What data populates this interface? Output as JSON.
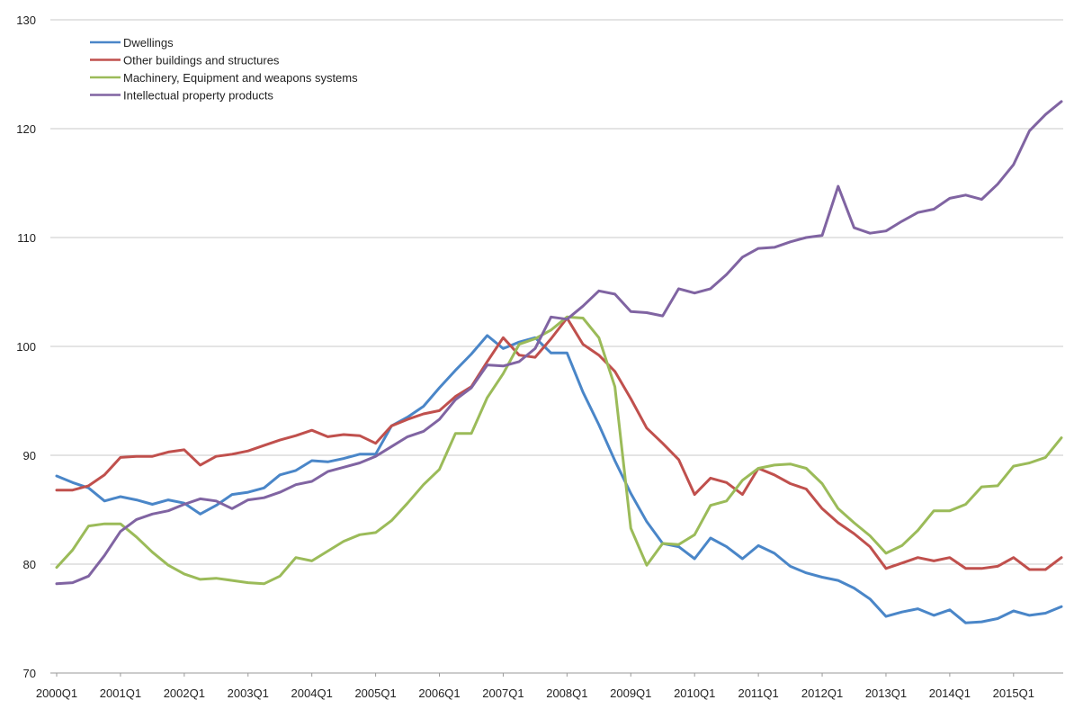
{
  "chart_data": {
    "type": "line",
    "title": "",
    "xlabel": "",
    "ylabel": "",
    "ylim": [
      70,
      130
    ],
    "yticks": [
      70,
      80,
      90,
      100,
      110,
      120,
      130
    ],
    "grid": true,
    "legend_position": "top-left",
    "x": [
      "2000Q1",
      "2000Q2",
      "2000Q3",
      "2000Q4",
      "2001Q1",
      "2001Q2",
      "2001Q3",
      "2001Q4",
      "2002Q1",
      "2002Q2",
      "2002Q3",
      "2002Q4",
      "2003Q1",
      "2003Q2",
      "2003Q3",
      "2003Q4",
      "2004Q1",
      "2004Q2",
      "2004Q3",
      "2004Q4",
      "2005Q1",
      "2005Q2",
      "2005Q3",
      "2005Q4",
      "2006Q1",
      "2006Q2",
      "2006Q3",
      "2006Q4",
      "2007Q1",
      "2007Q2",
      "2007Q3",
      "2007Q4",
      "2008Q1",
      "2008Q2",
      "2008Q3",
      "2008Q4",
      "2009Q1",
      "2009Q2",
      "2009Q3",
      "2009Q4",
      "2010Q1",
      "2010Q2",
      "2010Q3",
      "2010Q4",
      "2011Q1",
      "2011Q2",
      "2011Q3",
      "2011Q4",
      "2012Q1",
      "2012Q2",
      "2012Q3",
      "2012Q4",
      "2013Q1",
      "2013Q2",
      "2013Q3",
      "2013Q4",
      "2014Q1",
      "2014Q2",
      "2014Q3",
      "2014Q4",
      "2015Q1",
      "2015Q2",
      "2015Q3",
      "2015Q4"
    ],
    "xtick_labels": [
      "2000Q1",
      "2001Q1",
      "2002Q1",
      "2003Q1",
      "2004Q1",
      "2005Q1",
      "2006Q1",
      "2007Q1",
      "2008Q1",
      "2009Q1",
      "2010Q1",
      "2011Q1",
      "2012Q1",
      "2013Q1",
      "2014Q1",
      "2015Q1"
    ],
    "series": [
      {
        "name": "Dwellings",
        "color": "#4a86c8",
        "values": [
          88.1,
          87.5,
          87.0,
          85.8,
          86.2,
          85.9,
          85.5,
          85.9,
          85.6,
          84.6,
          85.4,
          86.4,
          86.6,
          87.0,
          88.2,
          88.6,
          89.5,
          89.4,
          89.7,
          90.1,
          90.1,
          92.7,
          93.5,
          94.5,
          96.2,
          97.8,
          99.3,
          101.0,
          99.8,
          100.4,
          100.8,
          99.4,
          99.4,
          95.8,
          92.8,
          89.5,
          86.5,
          83.9,
          81.9,
          81.6,
          80.5,
          82.4,
          81.6,
          80.5,
          81.7,
          81.0,
          79.8,
          79.2,
          78.8,
          78.5,
          77.8,
          76.8,
          75.2,
          75.6,
          75.9,
          75.3,
          75.8,
          74.6,
          74.7,
          75.0,
          75.7,
          75.3,
          75.5,
          76.1
        ]
      },
      {
        "name": "Other buildings and structures",
        "color": "#c0504d",
        "values": [
          86.8,
          86.8,
          87.2,
          88.2,
          89.8,
          89.9,
          89.9,
          90.3,
          90.5,
          89.1,
          89.9,
          90.1,
          90.4,
          90.9,
          91.4,
          91.8,
          92.3,
          91.7,
          91.9,
          91.8,
          91.1,
          92.7,
          93.3,
          93.8,
          94.1,
          95.4,
          96.3,
          98.6,
          100.8,
          99.2,
          99.0,
          100.7,
          102.6,
          100.2,
          99.2,
          97.7,
          95.2,
          92.5,
          91.1,
          89.6,
          86.4,
          87.9,
          87.5,
          86.4,
          88.8,
          88.2,
          87.4,
          86.9,
          85.1,
          83.8,
          82.8,
          81.6,
          79.6,
          80.1,
          80.6,
          80.3,
          80.6,
          79.6,
          79.6,
          79.8,
          80.6,
          79.5,
          79.5,
          80.6
        ]
      },
      {
        "name": "Machinery, Equipment and weapons systems",
        "color": "#9bbb59",
        "values": [
          79.7,
          81.3,
          83.5,
          83.7,
          83.7,
          82.5,
          81.1,
          79.9,
          79.1,
          78.6,
          78.7,
          78.5,
          78.3,
          78.2,
          78.9,
          80.6,
          80.3,
          81.2,
          82.1,
          82.7,
          82.9,
          84.0,
          85.6,
          87.3,
          88.7,
          92.0,
          92.0,
          95.3,
          97.5,
          100.2,
          100.7,
          101.5,
          102.7,
          102.6,
          100.8,
          96.3,
          83.3,
          79.9,
          81.9,
          81.8,
          82.7,
          85.4,
          85.8,
          87.7,
          88.8,
          89.1,
          89.2,
          88.8,
          87.4,
          85.1,
          83.8,
          82.6,
          81.0,
          81.7,
          83.1,
          84.9,
          84.9,
          85.5,
          87.1,
          87.2,
          89.0,
          89.3,
          89.8,
          91.6
        ]
      },
      {
        "name": "Intellectual property products",
        "color": "#8064a2",
        "values": [
          78.2,
          78.3,
          78.9,
          80.8,
          83.0,
          84.1,
          84.6,
          84.9,
          85.5,
          86.0,
          85.8,
          85.1,
          85.9,
          86.1,
          86.6,
          87.3,
          87.6,
          88.5,
          88.9,
          89.3,
          89.9,
          90.8,
          91.7,
          92.2,
          93.3,
          95.1,
          96.2,
          98.3,
          98.2,
          98.6,
          99.8,
          102.7,
          102.5,
          103.7,
          105.1,
          104.8,
          103.2,
          103.1,
          102.8,
          105.3,
          104.9,
          105.3,
          106.6,
          108.2,
          109.0,
          109.1,
          109.6,
          110.0,
          110.2,
          114.7,
          110.9,
          110.4,
          110.6,
          111.5,
          112.3,
          112.6,
          113.6,
          113.9,
          113.5,
          114.9,
          116.7,
          119.8,
          121.3,
          122.5
        ]
      }
    ]
  }
}
